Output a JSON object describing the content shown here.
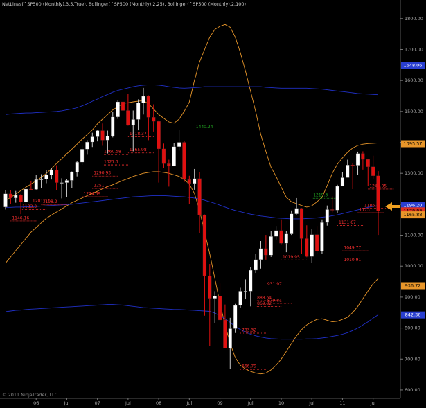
{
  "chart_data": {
    "type": "candlestick",
    "title": "NetLines(^SP500 (Monthly),3,5,True), Bollinger(^SP500 (Monthly),2,25), Bollinger(^SP500 (Monthly),2,100)",
    "footer": "© 2011 NinjaTrader, LLC",
    "categories": [
      null,
      null,
      null,
      null,
      null,
      null,
      "06",
      null,
      null,
      null,
      null,
      null,
      "Jul",
      null,
      null,
      null,
      null,
      null,
      "07",
      null,
      null,
      null,
      null,
      null,
      "Jul",
      null,
      null,
      null,
      null,
      null,
      "08",
      null,
      null,
      null,
      null,
      null,
      "Jul",
      null,
      null,
      null,
      null,
      null,
      "09",
      null,
      null,
      null,
      null,
      null,
      "Jul",
      null,
      null,
      null,
      null,
      null,
      "10",
      null,
      null,
      null,
      null,
      null,
      "Jul",
      null,
      null,
      null,
      null,
      null,
      "11",
      null,
      null,
      null,
      null,
      null,
      "Jul",
      null
    ],
    "open": [
      1191,
      1234,
      1220,
      1229,
      1207,
      1249,
      1248,
      1280,
      1281,
      1295,
      1311,
      1270,
      1270,
      1277,
      1304,
      1336,
      1378,
      1401,
      1418,
      1438,
      1407,
      1421,
      1482,
      1531,
      1503,
      1455,
      1474,
      1527,
      1549,
      1481,
      1468,
      1379,
      1331,
      1323,
      1386,
      1400,
      1280,
      1267,
      1283,
      1166,
      969,
      896,
      903,
      826,
      735,
      798,
      873,
      919,
      919,
      987,
      1021,
      1057,
      1036,
      1096,
      1115,
      1074,
      1104,
      1169,
      1187,
      1089,
      1031,
      1102,
      1049,
      1141,
      1183,
      1181,
      1258,
      1286,
      1327,
      1326,
      1364,
      1345,
      1321,
      1292
    ],
    "high": [
      1245,
      1246,
      1243,
      1233,
      1270,
      1276,
      1295,
      1297,
      1310,
      1318,
      1326,
      1284,
      1281,
      1306,
      1340,
      1389,
      1407,
      1431,
      1441,
      1461,
      1438,
      1499,
      1535,
      1540,
      1556,
      1503,
      1539,
      1576,
      1552,
      1523,
      1471,
      1396,
      1344,
      1397,
      1441,
      1405,
      1292,
      1314,
      1304,
      1167,
      1007,
      919,
      944,
      876,
      833,
      878,
      930,
      957,
      997,
      1040,
      1081,
      1101,
      1113,
      1130,
      1151,
      1113,
      1180,
      1220,
      1188,
      1132,
      1120,
      1130,
      1151,
      1196,
      1226,
      1263,
      1303,
      1344,
      1333,
      1370,
      1371,
      1347,
      1357,
      1307
    ],
    "low": [
      1183,
      1201,
      1205,
      1168,
      1201,
      1246,
      1245,
      1253,
      1268,
      1280,
      1245,
      1219,
      1224,
      1253,
      1290,
      1327,
      1360,
      1385,
      1403,
      1389,
      1364,
      1416,
      1476,
      1485,
      1454,
      1371,
      1439,
      1490,
      1407,
      1435,
      1270,
      1317,
      1257,
      1323,
      1373,
      1272,
      1200,
      1247,
      1107,
      840,
      741,
      816,
      804,
      735,
      667,
      784,
      866,
      893,
      870,
      978,
      992,
      1021,
      1030,
      1086,
      1071,
      1045,
      1101,
      1167,
      1040,
      1029,
      1011,
      1040,
      1040,
      1131,
      1174,
      1173,
      1258,
      1287,
      1249,
      1295,
      1312,
      1258,
      1282,
      1101
    ],
    "close": [
      1234,
      1220,
      1229,
      1207,
      1249,
      1248,
      1280,
      1281,
      1295,
      1311,
      1270,
      1270,
      1277,
      1304,
      1336,
      1378,
      1401,
      1418,
      1438,
      1407,
      1421,
      1482,
      1531,
      1503,
      1455,
      1474,
      1527,
      1549,
      1481,
      1468,
      1379,
      1331,
      1323,
      1386,
      1400,
      1280,
      1267,
      1283,
      1166,
      969,
      896,
      903,
      826,
      735,
      798,
      873,
      919,
      919,
      987,
      1021,
      1057,
      1036,
      1096,
      1115,
      1074,
      1104,
      1169,
      1187,
      1089,
      1031,
      1102,
      1049,
      1141,
      1183,
      1181,
      1258,
      1286,
      1327,
      1326,
      1364,
      1345,
      1321,
      1292,
      1179
    ],
    "up_color": "#ffffff",
    "down_color": "#e01010",
    "overlays": [
      {
        "color": "#e8962a",
        "values": [
          1212,
          1222,
          1233,
          1244,
          1255,
          1265,
          1276,
          1287,
          1300,
          1315,
          1332,
          1347,
          1363,
          1378,
          1394,
          1410,
          1425,
          1440,
          1460,
          1475,
          1490,
          1505,
          1515,
          1526,
          1528,
          1531,
          1533,
          1535,
          1525,
          1508,
          1490,
          1478,
          1466,
          1462,
          1475,
          1500,
          1530,
          1600,
          1660,
          1700,
          1740,
          1765,
          1775,
          1781,
          1772,
          1740,
          1690,
          1630,
          1565,
          1500,
          1425,
          1370,
          1320,
          1290,
          1255,
          1222,
          1208,
          1202,
          1196,
          1191,
          1195,
          1208,
          1222,
          1260,
          1300,
          1330,
          1350,
          1368,
          1382,
          1390,
          1394,
          1396,
          1397,
          1398
        ]
      },
      {
        "color": "#e8962a",
        "values": [
          1010,
          1030,
          1050,
          1070,
          1090,
          1110,
          1125,
          1140,
          1155,
          1165,
          1175,
          1185,
          1195,
          1205,
          1213,
          1220,
          1228,
          1235,
          1242,
          1250,
          1257,
          1263,
          1270,
          1277,
          1283,
          1290,
          1295,
          1300,
          1303,
          1305,
          1305,
          1303,
          1300,
          1295,
          1290,
          1280,
          1265,
          1235,
          1180,
          1110,
          1040,
          960,
          880,
          810,
          750,
          705,
          680,
          668,
          660,
          655,
          652,
          655,
          665,
          680,
          700,
          725,
          750,
          775,
          795,
          810,
          820,
          828,
          830,
          825,
          820,
          822,
          828,
          835,
          850,
          870,
          895,
          920,
          943,
          960
        ]
      },
      {
        "color": "#2030c8",
        "values": [
          1490,
          1492,
          1493,
          1494,
          1495,
          1495,
          1496,
          1497,
          1498,
          1499,
          1500,
          1502,
          1505,
          1508,
          1512,
          1518,
          1525,
          1533,
          1540,
          1548,
          1555,
          1562,
          1568,
          1572,
          1576,
          1580,
          1583,
          1585,
          1586,
          1586,
          1585,
          1583,
          1580,
          1578,
          1576,
          1575,
          1576,
          1577,
          1578,
          1580,
          1580,
          1580,
          1580,
          1580,
          1580,
          1580,
          1580,
          1580,
          1580,
          1580,
          1580,
          1578,
          1577,
          1576,
          1575,
          1575,
          1575,
          1575,
          1575,
          1575,
          1574,
          1573,
          1572,
          1570,
          1568,
          1566,
          1564,
          1562,
          1560,
          1558,
          1557,
          1556,
          1555,
          1554
        ]
      },
      {
        "color": "#2030c8",
        "values": [
          1190,
          1190,
          1191,
          1191,
          1192,
          1192,
          1193,
          1194,
          1195,
          1196,
          1197,
          1198,
          1199,
          1200,
          1202,
          1204,
          1206,
          1208,
          1210,
          1212,
          1214,
          1216,
          1218,
          1220,
          1222,
          1224,
          1225,
          1226,
          1227,
          1228,
          1228,
          1228,
          1227,
          1226,
          1225,
          1224,
          1222,
          1220,
          1217,
          1213,
          1208,
          1203,
          1197,
          1191,
          1185,
          1180,
          1176,
          1172,
          1168,
          1165,
          1162,
          1160,
          1158,
          1156,
          1155,
          1154,
          1153,
          1153,
          1153,
          1154,
          1155,
          1156,
          1158,
          1160,
          1163,
          1166,
          1170,
          1174,
          1178,
          1182,
          1186,
          1190,
          1193,
          1196
        ]
      },
      {
        "color": "#2030c8",
        "values": [
          853,
          855,
          857,
          858,
          860,
          861,
          862,
          863,
          864,
          865,
          866,
          867,
          868,
          869,
          870,
          871,
          872,
          873,
          874,
          875,
          876,
          876,
          875,
          874,
          872,
          870,
          868,
          866,
          865,
          864,
          863,
          862,
          861,
          860,
          860,
          859,
          858,
          857,
          856,
          855,
          854,
          848,
          840,
          830,
          818,
          805,
          795,
          787,
          780,
          775,
          771,
          768,
          766,
          765,
          764,
          764,
          764,
          764,
          764,
          765,
          765,
          766,
          768,
          770,
          773,
          776,
          780,
          785,
          792,
          800,
          810,
          820,
          832,
          843
        ]
      }
    ],
    "netlines": [
      {
        "value": 1146.16,
        "from_month": 1,
        "color": "#ff3030"
      },
      {
        "value": 1183.3,
        "from_month": 3,
        "color": "#ff3030"
      },
      {
        "value": 1201.07,
        "from_month": 5,
        "color": "#ff3030"
      },
      {
        "value": 1198.2,
        "from_month": 7,
        "color": "#ff3030"
      },
      {
        "value": 1224.69,
        "from_month": 15,
        "color": "#ff3030"
      },
      {
        "value": 1251.1,
        "from_month": 17,
        "color": "#ff3030"
      },
      {
        "value": 1290.93,
        "from_month": 17,
        "color": "#ff3030"
      },
      {
        "value": 1327.1,
        "from_month": 19,
        "color": "#ff3030"
      },
      {
        "value": 1360.58,
        "from_month": 19,
        "color": "#ff3030"
      },
      {
        "value": 1365.98,
        "from_month": 24,
        "color": "#ff3030"
      },
      {
        "value": 1418.37,
        "from_month": 24,
        "color": "#ff3030"
      },
      {
        "value": 1440.24,
        "from_month": 37,
        "color": "#22aa22"
      },
      {
        "value": 1219.3,
        "from_month": 60,
        "color": "#22aa22"
      },
      {
        "value": 1249.05,
        "from_month": 71,
        "color": "#ff3030"
      },
      {
        "value": 1186.8,
        "from_month": 70,
        "color": "#ff3030"
      },
      {
        "value": 1173,
        "from_month": 69,
        "color": "#ff3030"
      },
      {
        "value": 1131.67,
        "from_month": 65,
        "color": "#ff3030"
      },
      {
        "value": 1049.77,
        "from_month": 66,
        "color": "#ff3030"
      },
      {
        "value": 1010.91,
        "from_month": 66,
        "color": "#ff3030"
      },
      {
        "value": 1019.95,
        "from_month": 54,
        "color": "#ff3030"
      },
      {
        "value": 931.97,
        "from_month": 51,
        "color": "#ff3030"
      },
      {
        "value": 879.81,
        "from_month": 51,
        "color": "#ff3030"
      },
      {
        "value": 888.64,
        "from_month": 49,
        "color": "#ff3030"
      },
      {
        "value": 869.32,
        "from_month": 49,
        "color": "#ff3030"
      },
      {
        "value": 783.32,
        "from_month": 46,
        "color": "#ff3030"
      },
      {
        "value": 666.79,
        "from_month": 46,
        "color": "#ff3030"
      }
    ],
    "price_markers": [
      {
        "value": 1648.06,
        "color": "#2a3fd0"
      },
      {
        "value": 1395.57,
        "color": "#e8962a"
      },
      {
        "value": 1196.2,
        "label": "1196.20",
        "color": "#2a3fd0"
      },
      {
        "value": 1178.83,
        "color": "#e03020"
      },
      {
        "value": 1165.88,
        "color": "#e8962a"
      },
      {
        "value": 936.72,
        "color": "#e8962a"
      },
      {
        "value": 842.36,
        "color": "#2a3fd0"
      }
    ],
    "ylim": [
      573,
      1860
    ],
    "yticks": [
      {
        "value": 600,
        "label": "600.00"
      },
      {
        "value": 700,
        "label": "700.00"
      },
      {
        "value": 800,
        "label": "800.00"
      },
      {
        "value": 900,
        "label": "900.00"
      },
      {
        "value": 1000,
        "label": "1000.00"
      },
      {
        "value": 1100,
        "label": "1100.00"
      },
      {
        "value": 1200,
        "label": "1200.00"
      },
      {
        "value": 1300,
        "label": "1300.00"
      },
      {
        "value": 1400,
        "label": "1400.00"
      },
      {
        "value": 1500,
        "label": "1500.00"
      },
      {
        "value": 1600,
        "label": "1600.00"
      },
      {
        "value": 1700,
        "label": "1700.00"
      },
      {
        "value": 1800,
        "label": "1800.00"
      }
    ]
  }
}
